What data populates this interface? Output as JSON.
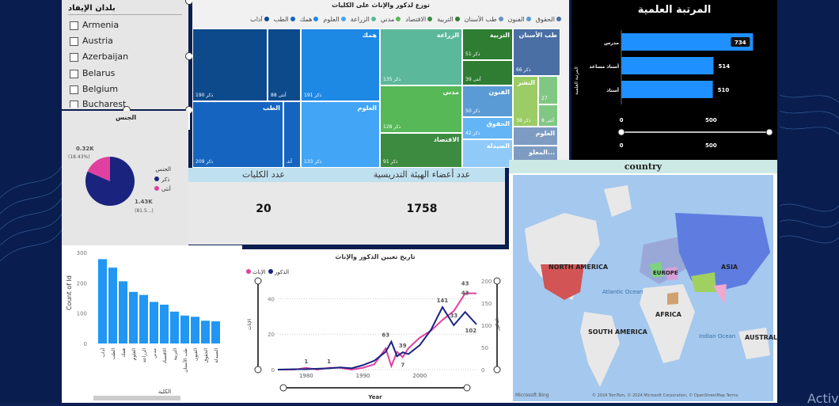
{
  "slicer": {
    "title": "بلدان الإيفاد",
    "items": [
      "Armenia",
      "Austria",
      "Azerbaijan",
      "Belarus",
      "Belgium",
      "Bucharest"
    ]
  },
  "toolbar": {
    "chart_icon": "bar-chart-icon",
    "paint_icon": "paint-brush-icon"
  },
  "treemap": {
    "title": "توزع لذكور والإناث على الكليات",
    "legend": [
      "الحقوق",
      "الفنون",
      "طب الأسنان",
      "التربية",
      "الاقتصاد",
      "مدني",
      "الزراعة",
      "العلوم",
      "همك",
      "الطب",
      "آداب"
    ],
    "tiles": [
      {
        "label": "",
        "value": "ذكر 190",
        "color": "#0d4a8c"
      },
      {
        "label": "",
        "value": "أنثى 88",
        "color": "#0d4a8c"
      },
      {
        "label": "همك",
        "value": "ذكر 191",
        "color": "#1e88e5"
      },
      {
        "label": "الزراعة",
        "value": "ذكر 135",
        "color": "#5cb89a"
      },
      {
        "label": "التربية",
        "value": "ذكر 51",
        "color": "#2e7d32"
      },
      {
        "label": "",
        "value": "أنثى 39",
        "color": "#2e7d32"
      },
      {
        "label": "طب الأسنان",
        "value": "ذكر 66",
        "color": "#4a6fa5"
      },
      {
        "label": "الطب",
        "value": "ذكر 209",
        "color": "#1565c0"
      },
      {
        "label": "",
        "value": "آنثـ",
        "color": "#1565c0"
      },
      {
        "label": "العلوم",
        "value": "ذكر 133",
        "color": "#42a5f5"
      },
      {
        "label": "",
        "value": "آ...",
        "color": "#42a5f5"
      },
      {
        "label": "مدني",
        "value": "ذكر 128",
        "color": "#57b857"
      },
      {
        "label": "الفنون",
        "value": "ذكر 50",
        "color": "#5b9bd5"
      },
      {
        "label": "الحقوق",
        "value": "ذكر 42",
        "color": "#64b5f6"
      },
      {
        "label": "الاقتصاد",
        "value": "ذكر 91",
        "color": "#3d8b40"
      },
      {
        "label": "الصيدلة",
        "value": "",
        "color": "#90caf9"
      },
      {
        "label": "النشر",
        "value": "ذكر 38",
        "color": "#9ccc65"
      },
      {
        "label": "",
        "value": "27",
        "color": "#81c784"
      },
      {
        "label": "",
        "value": "أنثى 8",
        "color": "#81c784"
      },
      {
        "label": "العلوم",
        "value": "",
        "color": "#7e9cc2"
      },
      {
        "label": "المعلو...",
        "value": "",
        "color": "#7e9cc2"
      }
    ]
  },
  "rank_chart": {
    "title": "المرتبة العلمية",
    "axis_label": "المرتبة العلمية",
    "categories": [
      "مدرس",
      "أستاذ مساعد",
      "أستاذ"
    ],
    "values": [
      734,
      514,
      510
    ],
    "ticks": [
      "0",
      "500"
    ],
    "color": "#1e90ff"
  },
  "pie_chart": {
    "title": "الجنس",
    "label_female": "0.32K",
    "label_female_pct": "(18.43%)",
    "label_male": "1.43K",
    "label_male_pct": "(81.5...)",
    "legend_title": "الجنس",
    "legend": [
      "ذكر",
      "أنثى"
    ],
    "colors": {
      "male": "#1a237e",
      "female": "#e040a0"
    }
  },
  "card_colleges": {
    "title": "عدد الكليات",
    "value": "20"
  },
  "card_staff": {
    "title": "عدد أعضاء الهيئة التدريسية",
    "value": "1758"
  },
  "map": {
    "title": "country",
    "labels": [
      "NORTH AMERICA",
      "EUROPE",
      "ASIA",
      "AFRICA",
      "SOUTH AMERICA",
      "Atlantic Ocean",
      "Indian Ocean",
      "AUSTRAL"
    ],
    "footer": "© 2024 TomTom, © 2024 Microsoft Corporation, © OpenStreetMap Terms",
    "brand": "Microsoft Bing"
  },
  "college_chart": {
    "ylabel": "Count of Id",
    "xlabel": "الكلية",
    "yticks": [
      "0",
      "100",
      "200",
      "300"
    ]
  },
  "chart_data": [
    {
      "type": "bar",
      "categories": [
        "آداب",
        "الطب",
        "همك",
        "العلوم",
        "الزراعة",
        "مدني",
        "الاقتصاد",
        "التربية",
        "طب الأسنان",
        "الفنون",
        "الحقوق",
        "الصيدلة"
      ],
      "values": [
        278,
        250,
        205,
        170,
        160,
        137,
        128,
        105,
        92,
        88,
        75,
        73
      ],
      "ylabel": "Count of Id",
      "xlabel": "الكلية",
      "ylim": [
        0,
        300
      ]
    },
    {
      "type": "line",
      "title": "تاريخ تعيين الذكور والإناث",
      "xlabel": "Year",
      "ylabel_left": "الإناث",
      "ylabel_right": "الذكور",
      "series": [
        {
          "name": "الإناث",
          "color": "#e040a0",
          "x": [
            1975,
            1978,
            1980,
            1982,
            1984,
            1986,
            1988,
            1990,
            1992,
            1994,
            1995,
            1996,
            1997,
            1998,
            2000,
            2002,
            2004,
            2006,
            2008,
            2010
          ],
          "y": [
            0,
            0,
            1,
            0,
            1,
            1,
            0,
            1,
            3,
            12,
            2,
            10,
            7,
            12,
            18,
            22,
            28,
            33,
            43,
            43
          ]
        },
        {
          "name": "الذكور",
          "color": "#1a237e",
          "x": [
            1975,
            1978,
            1980,
            1982,
            1984,
            1986,
            1988,
            1990,
            1992,
            1994,
            1995,
            1996,
            1997,
            1998,
            2000,
            2002,
            2004,
            2006,
            2008,
            2010
          ],
          "y": [
            0,
            1,
            1,
            2,
            3,
            5,
            3,
            10,
            20,
            40,
            63,
            30,
            39,
            35,
            55,
            90,
            141,
            100,
            130,
            102
          ]
        }
      ],
      "xticks": [
        "1980",
        "1990",
        "2000"
      ],
      "yticks_left": [
        "0",
        "20",
        "40"
      ],
      "yticks_right": [
        "0",
        "50",
        "100",
        "150",
        "200"
      ],
      "data_labels": [
        "1",
        "1",
        "63",
        "39",
        "7",
        "141",
        "33",
        "43",
        "43",
        "102"
      ]
    }
  ]
}
